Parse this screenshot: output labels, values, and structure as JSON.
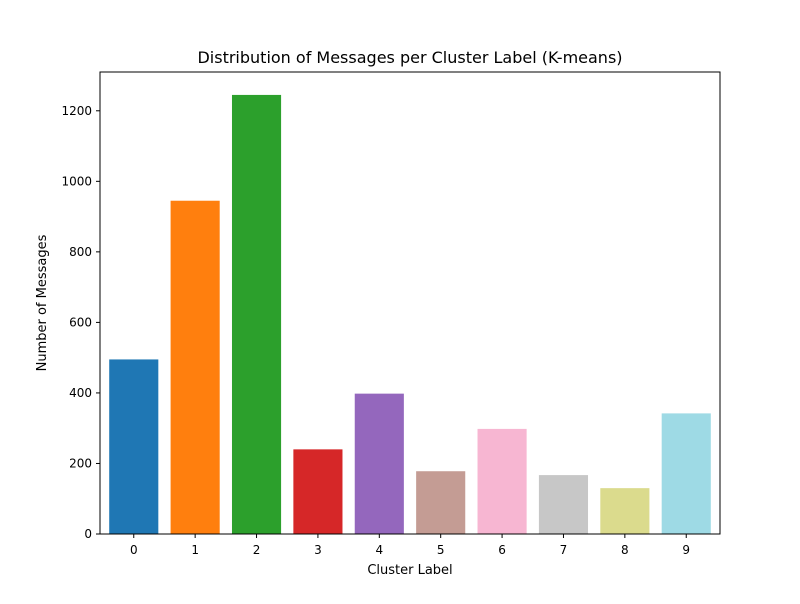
{
  "chart_data": {
    "type": "bar",
    "title": "Distribution of Messages per Cluster Label (K-means)",
    "xlabel": "Cluster Label",
    "ylabel": "Number of Messages",
    "categories": [
      "0",
      "1",
      "2",
      "3",
      "4",
      "5",
      "6",
      "7",
      "8",
      "9"
    ],
    "values": [
      495,
      945,
      1245,
      240,
      398,
      178,
      298,
      167,
      130,
      342
    ],
    "colors": [
      "#1f77b4",
      "#ff7f0e",
      "#2ca02c",
      "#d62728",
      "#9467bd",
      "#c49c94",
      "#f7b6d2",
      "#c7c7c7",
      "#dbdb8d",
      "#9edae5"
    ],
    "ylim": [
      0,
      1310
    ],
    "yticks": [
      0,
      200,
      400,
      600,
      800,
      1000,
      1200
    ],
    "grid": false,
    "legend": false
  }
}
